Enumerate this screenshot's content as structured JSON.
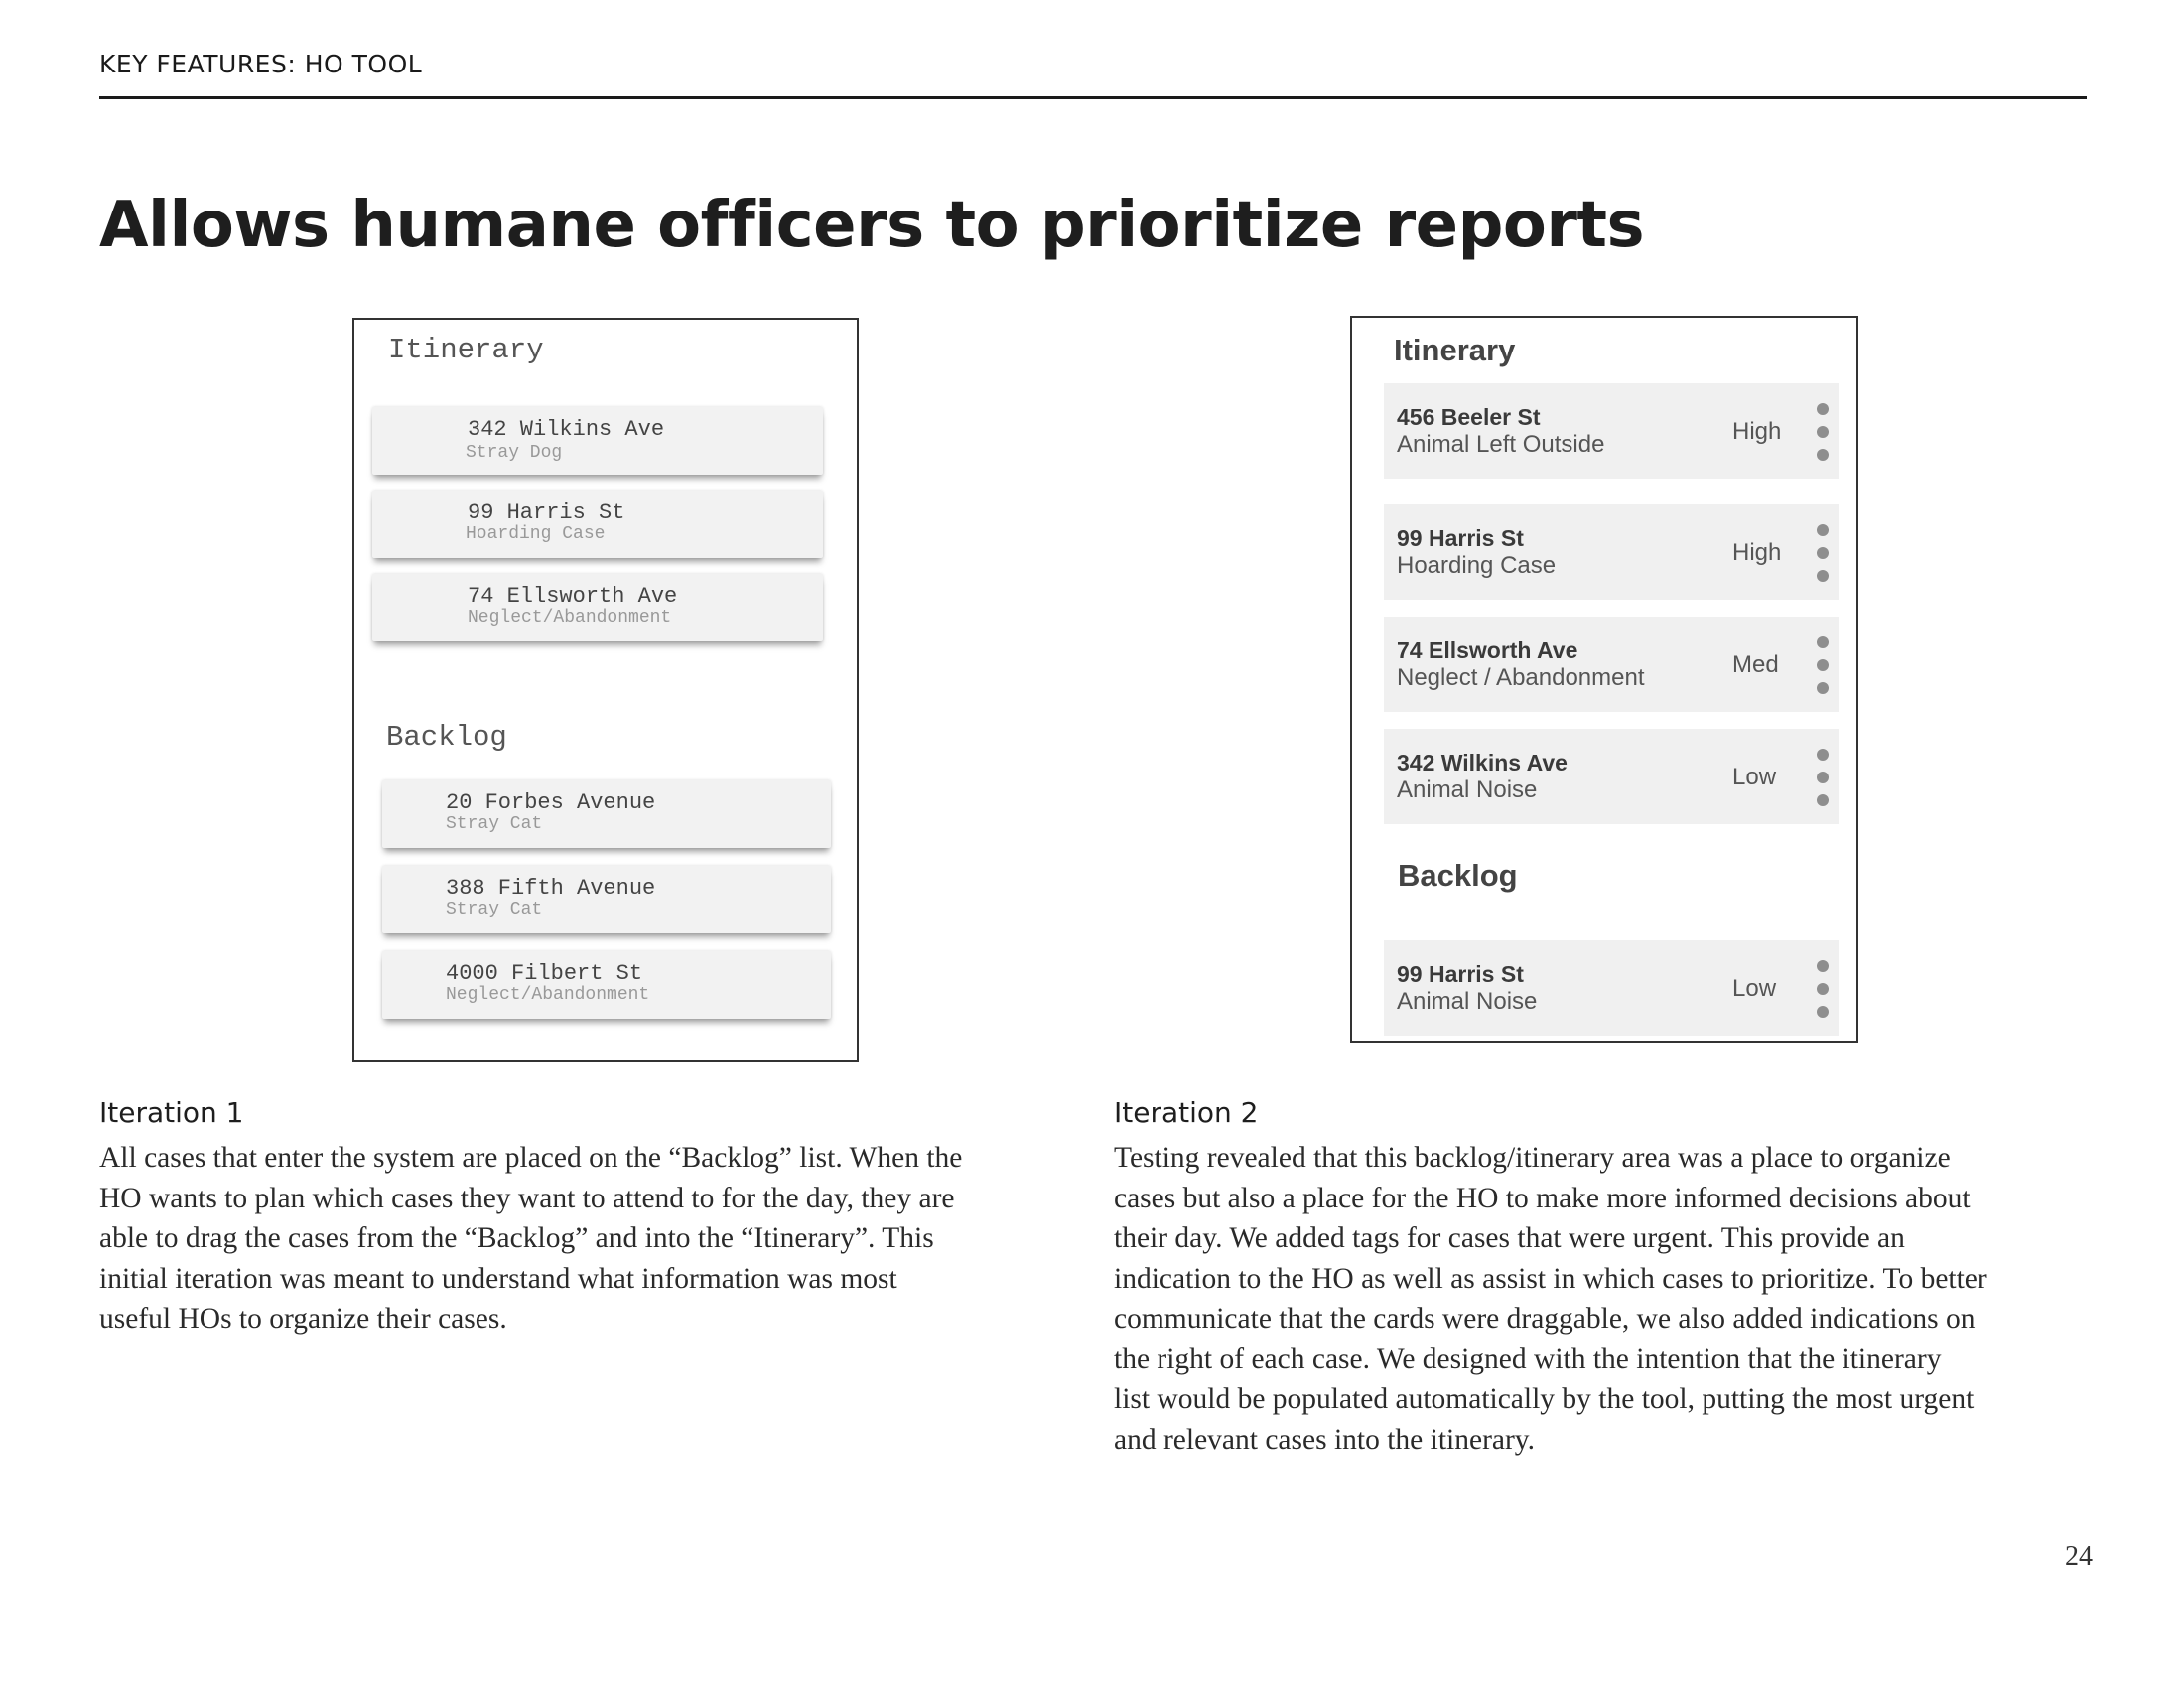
{
  "header": {
    "section_label": "KEY FEATURES: HO TOOL"
  },
  "title": "Allows humane officers to prioritize reports",
  "iteration1": {
    "mockup": {
      "itinerary_heading": "Itinerary",
      "itinerary": [
        {
          "address": "342 Wilkins Ave",
          "type": "Stray Dog"
        },
        {
          "address": "99 Harris St",
          "type": "Hoarding Case"
        },
        {
          "address": "74 Ellsworth Ave",
          "type": "Neglect/Abandonment"
        }
      ],
      "backlog_heading": "Backlog",
      "backlog": [
        {
          "address": "20 Forbes Avenue",
          "type": "Stray Cat"
        },
        {
          "address": "388 Fifth Avenue",
          "type": "Stray Cat"
        },
        {
          "address": "4000 Filbert St",
          "type": "Neglect/Abandonment"
        }
      ]
    },
    "caption_title": "Iteration 1",
    "caption_lines": [
      "All cases that enter the system are placed on the “Backlog” list. When the",
      "HO wants to plan which cases they want to attend to for the day, they are",
      "able to drag the cases from the “Backlog” and into the “Itinerary”. This",
      "initial iteration was meant to understand what information was most",
      "useful HOs to organize their cases."
    ]
  },
  "iteration2": {
    "mockup": {
      "itinerary_heading": "Itinerary",
      "itinerary": [
        {
          "address": "456 Beeler St",
          "type": "Animal Left Outside",
          "priority": "High"
        },
        {
          "address": "99 Harris St",
          "type": "Hoarding Case",
          "priority": "High"
        },
        {
          "address": "74 Ellsworth Ave",
          "type": "Neglect / Abandonment",
          "priority": "Med"
        },
        {
          "address": "342 Wilkins Ave",
          "type": "Animal Noise",
          "priority": "Low"
        }
      ],
      "backlog_heading": "Backlog",
      "backlog": [
        {
          "address": "99 Harris St",
          "type": "Animal Noise",
          "priority": "Low"
        }
      ]
    },
    "caption_title": "Iteration 2",
    "caption_lines": [
      "Testing revealed that this backlog/itinerary area was a place to organize",
      "cases but also a place for the HO to make more informed decisions about",
      "their day. We  added tags for cases that were urgent. This provide an",
      "indication to the HO as well as assist in which cases to prioritize. To better",
      "communicate that the cards were draggable, we also added indications on",
      "the right of each case. We designed with the intention that the itinerary",
      "list would be populated automatically by the tool, putting the most urgent",
      "and relevant cases into the itinerary."
    ]
  },
  "page_number": "24"
}
